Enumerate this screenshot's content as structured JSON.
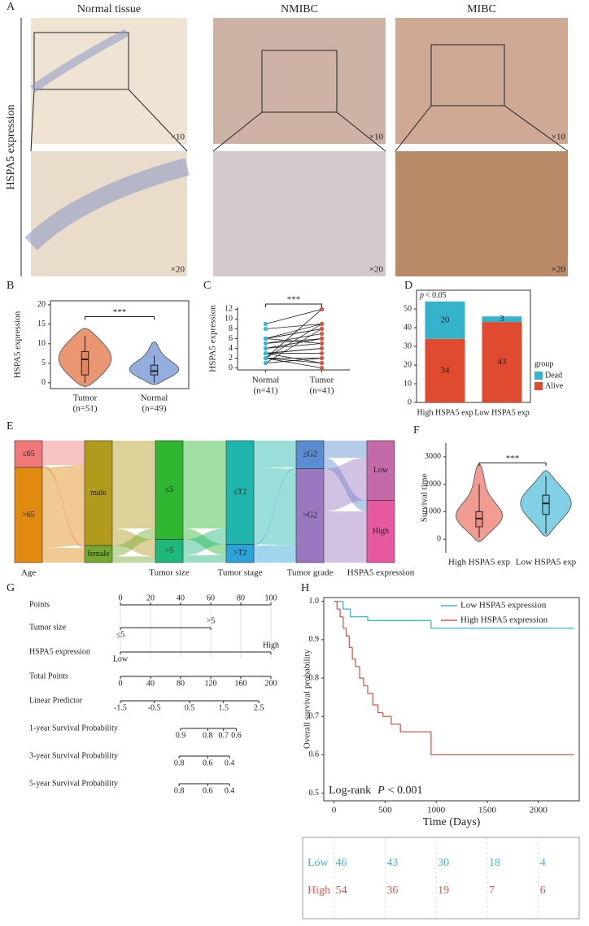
{
  "panel_a": {
    "label": "A",
    "columns": [
      "Normal tissue",
      "NMIBC",
      "MIBC"
    ],
    "y_label": "HSPA5 expression",
    "top_magnifications": [
      "×10",
      "×10",
      "×10"
    ],
    "bottom_magnifications": [
      "×20",
      "×20",
      "×20"
    ]
  },
  "chart_data": [
    {
      "type": "violin",
      "label": "B",
      "y_label": "HSPA5 expression",
      "categories": [
        "Tumor",
        "Normal"
      ],
      "n_labels": [
        "(n=51)",
        "(n=49)"
      ],
      "colors": [
        "#e8845a",
        "#7f9fd8"
      ],
      "boxes": [
        {
          "min": 0,
          "q1": 2,
          "median": 6,
          "q3": 8,
          "max": 12
        },
        {
          "min": 0,
          "q1": 2,
          "median": 3,
          "q3": 4.5,
          "max": 7
        }
      ],
      "extent": [
        [
          -1,
          14
        ],
        [
          -0.5,
          10.5
        ]
      ],
      "ylim": [
        -1.5,
        21
      ],
      "yticks": [
        0,
        5,
        10,
        15,
        20
      ],
      "significance": "***"
    },
    {
      "type": "paired",
      "label": "C",
      "y_label": "HSPA5 expression",
      "categories": [
        "Normal",
        "Tumor"
      ],
      "n_labels": [
        "(n=41)",
        "(n=41)"
      ],
      "colors": [
        "#35b8d8",
        "#e0553a"
      ],
      "values": [
        [
          9,
          8,
          6,
          6,
          6,
          5,
          5,
          4,
          4,
          3,
          3,
          3,
          2,
          2,
          2,
          2,
          1,
          1,
          4,
          6,
          2,
          3
        ],
        [
          12,
          9,
          9,
          8,
          8,
          7,
          6,
          6,
          5,
          4,
          4,
          3,
          2,
          1,
          0,
          12,
          8,
          2,
          6,
          5,
          9,
          1
        ]
      ],
      "ylim": [
        -0.4,
        12.4
      ],
      "yticks": [
        0,
        2,
        4,
        6,
        8,
        10,
        12
      ],
      "significance": "***"
    },
    {
      "type": "stacked_bar",
      "label": "D",
      "annotation": {
        "symbol": "p",
        "text": "< 0.05"
      },
      "categories": [
        "High HSPA5 exp",
        "Low HSPA5 exp"
      ],
      "series": [
        {
          "name": "Alive",
          "color": "#e04a2f",
          "values": [
            34,
            43
          ]
        },
        {
          "name": "Dead",
          "color": "#35b3cc",
          "values": [
            20,
            3
          ]
        }
      ],
      "legend_title": "group",
      "ylim": [
        0,
        60
      ],
      "yticks": [
        0,
        10,
        20,
        30,
        40,
        50
      ]
    },
    {
      "type": "sankey",
      "label": "E",
      "columns": [
        {
          "name": "Age",
          "nodes": [
            {
              "name": "≤65",
              "value": 22,
              "color": "#f07878"
            },
            {
              "name": ">65",
              "value": 78,
              "color": "#e08a10"
            }
          ]
        },
        {
          "name": null,
          "nodes": [
            {
              "name": "male",
              "value": 86,
              "color": "#b29a1c"
            },
            {
              "name": "female",
              "value": 14,
              "color": "#74a82e"
            }
          ]
        },
        {
          "name": "Tumor size",
          "nodes": [
            {
              "name": "≤5",
              "value": 81,
              "color": "#2fb52f"
            },
            {
              "name": ">5",
              "value": 19,
              "color": "#1fb87c"
            }
          ]
        },
        {
          "name": "Tumor stage",
          "nodes": [
            {
              "name": "≤T2",
              "value": 85,
              "color": "#1fb5ac"
            },
            {
              "name": ">T2",
              "value": 15,
              "color": "#2ba3d8"
            }
          ]
        },
        {
          "name": "Tumor grade",
          "nodes": [
            {
              "name": "≤G2",
              "value": 23,
              "color": "#5b8bd0"
            },
            {
              "name": ">G2",
              "value": 77,
              "color": "#9a78c0"
            }
          ]
        },
        {
          "name": "HSPA5 expression",
          "nodes": [
            {
              "name": "Low",
              "value": 49,
              "color": "#c56aa8"
            },
            {
              "name": "High",
              "value": 51,
              "color": "#e85aa0"
            }
          ]
        }
      ],
      "flows": [
        [
          {
            "from": 0,
            "to": 0,
            "value": 20
          },
          {
            "from": 0,
            "to": 1,
            "value": 2
          },
          {
            "from": 1,
            "to": 0,
            "value": 66
          },
          {
            "from": 1,
            "to": 1,
            "value": 12
          }
        ],
        [
          {
            "from": 0,
            "to": 0,
            "value": 72
          },
          {
            "from": 0,
            "to": 1,
            "value": 14
          },
          {
            "from": 1,
            "to": 0,
            "value": 9
          },
          {
            "from": 1,
            "to": 1,
            "value": 5
          }
        ],
        [
          {
            "from": 0,
            "to": 0,
            "value": 72
          },
          {
            "from": 0,
            "to": 1,
            "value": 9
          },
          {
            "from": 1,
            "to": 0,
            "value": 13
          },
          {
            "from": 1,
            "to": 1,
            "value": 6
          }
        ],
        [
          {
            "from": 0,
            "to": 0,
            "value": 22
          },
          {
            "from": 0,
            "to": 1,
            "value": 63
          },
          {
            "from": 1,
            "to": 0,
            "value": 1
          },
          {
            "from": 1,
            "to": 1,
            "value": 14
          }
        ],
        [
          {
            "from": 0,
            "to": 0,
            "value": 14
          },
          {
            "from": 0,
            "to": 1,
            "value": 9
          },
          {
            "from": 1,
            "to": 0,
            "value": 35
          },
          {
            "from": 1,
            "to": 1,
            "value": 42
          }
        ]
      ]
    },
    {
      "type": "violin",
      "label": "F",
      "y_label": "Survival time",
      "categories": [
        "High HSPA5 exp",
        "Low HSPA5 exp"
      ],
      "colors": [
        "#f08a80",
        "#6cc8e0"
      ],
      "boxes": [
        {
          "min": 50,
          "q1": 450,
          "median": 750,
          "q3": 1000,
          "max": 2000
        },
        {
          "min": 200,
          "q1": 900,
          "median": 1300,
          "q3": 1600,
          "max": 2300
        }
      ],
      "extent": [
        [
          -100,
          2750
        ],
        [
          100,
          2500
        ]
      ],
      "ylim": [
        -500,
        3500
      ],
      "yticks": [
        0,
        1000,
        2000,
        3000
      ],
      "significance": "***"
    },
    {
      "type": "nomogram",
      "label": "G",
      "points_range": [
        0,
        100
      ],
      "total_range": [
        0,
        200
      ],
      "rows": [
        {
          "name": "Points",
          "scale": "points",
          "ticks": [
            0,
            20,
            40,
            60,
            80,
            100
          ]
        },
        {
          "name": "Tumor size",
          "scale": "points",
          "ticks": [
            "≤5",
            ">5"
          ],
          "at": [
            0,
            60
          ]
        },
        {
          "name": "HSPA5 expression",
          "scale": "points",
          "ticks": [
            "Low",
            "High"
          ],
          "at": [
            0,
            100
          ]
        },
        {
          "name": "Total Points",
          "scale": "total",
          "ticks": [
            0,
            40,
            80,
            120,
            160,
            200
          ]
        },
        {
          "name": "Linear Predictor",
          "scale": "total",
          "ticks": [
            -1.5,
            -0.5,
            0.5,
            1.5,
            2.5
          ],
          "at": [
            0,
            45,
            92,
            137,
            184
          ]
        },
        {
          "name": "1-year Survival Probability",
          "scale": "total",
          "ticks": [
            0.9,
            0.8,
            0.7,
            0.6
          ],
          "at": [
            80,
            116,
            137,
            154
          ]
        },
        {
          "name": "3-year Survival Probability",
          "scale": "total",
          "ticks": [
            0.8,
            0.6,
            0.4
          ],
          "at": [
            78,
            116,
            145
          ]
        },
        {
          "name": "5-year Survival Probability",
          "scale": "total",
          "ticks": [
            0.8,
            0.6,
            0.4
          ],
          "at": [
            78,
            116,
            145
          ]
        }
      ]
    },
    {
      "type": "km",
      "label": "H",
      "y_label": "Overall survival probability",
      "x_label": "Time (Days)",
      "xlim": [
        -100,
        2400
      ],
      "ylim": [
        0.48,
        1.01
      ],
      "xticks": [
        0,
        500,
        1000,
        1500,
        2000
      ],
      "yticks": [
        0.5,
        0.6,
        0.7,
        0.8,
        0.9,
        {
          "value": 1,
          "label": "1.0"
        }
      ],
      "series": [
        {
          "name": "Low HSPA5 expression",
          "color": "#3cb6d6",
          "x": [
            0,
            90,
            160,
            330,
            950,
            2350
          ],
          "values": [
            1,
            0.98,
            0.96,
            0.95,
            0.93,
            0.93
          ]
        },
        {
          "name": "High HSPA5 expression",
          "color": "#e0584c",
          "x": [
            0,
            30,
            60,
            90,
            120,
            150,
            180,
            210,
            250,
            290,
            330,
            380,
            430,
            480,
            560,
            650,
            950,
            2350
          ],
          "values": [
            1,
            0.98,
            0.96,
            0.93,
            0.91,
            0.88,
            0.85,
            0.83,
            0.8,
            0.78,
            0.76,
            0.73,
            0.71,
            0.7,
            0.68,
            0.66,
            0.6,
            0.6
          ]
        }
      ],
      "annotation": {
        "prefix": "Log-rank",
        "symbol": "P",
        "text": "< 0.001"
      },
      "risk_table": [
        {
          "name": "Low",
          "values": [
            46,
            43,
            30,
            18,
            4
          ]
        },
        {
          "name": "High",
          "values": [
            54,
            36,
            19,
            7,
            6
          ]
        }
      ]
    }
  ]
}
